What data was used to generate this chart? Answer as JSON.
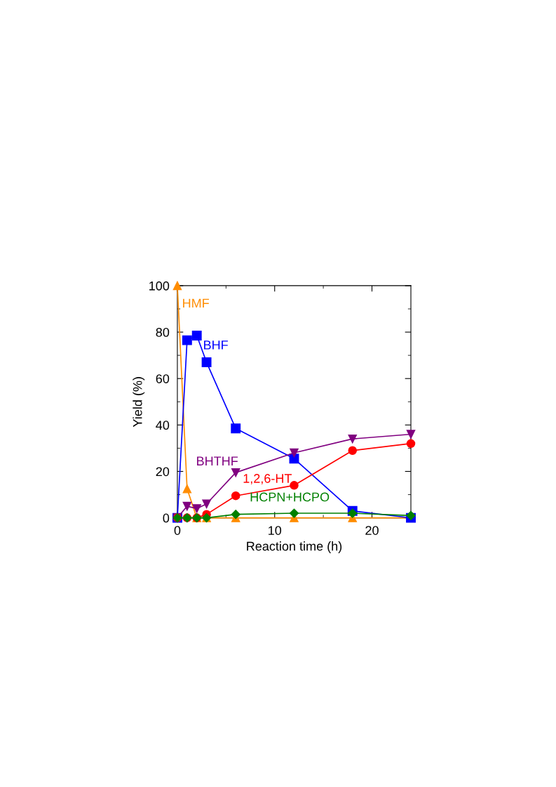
{
  "chart_data": {
    "type": "line",
    "xlabel": "Reaction time (h)",
    "ylabel": "Yield (%)",
    "x": [
      0,
      1,
      2,
      3,
      6,
      12,
      18,
      24
    ],
    "series": [
      {
        "name": "HMF",
        "color": "#ff8c00",
        "marker": "triangle",
        "values": [
          100,
          12.5,
          0,
          0,
          0,
          0,
          0,
          0
        ]
      },
      {
        "name": "BHF",
        "color": "#0000ff",
        "marker": "square",
        "values": [
          0,
          76.5,
          78.5,
          67,
          38.5,
          25.5,
          3,
          0
        ]
      },
      {
        "name": "BHTHF",
        "color": "#800080",
        "marker": "triangle_down",
        "values": [
          0,
          5,
          4,
          6,
          19.5,
          28,
          34,
          36
        ]
      },
      {
        "name": "1,2,6-HT",
        "color": "#ff0000",
        "marker": "circle",
        "values": [
          0,
          0,
          0,
          1.5,
          9.5,
          14,
          29,
          32
        ]
      },
      {
        "name": "HCPN+HCPO",
        "color": "#008000",
        "marker": "diamond",
        "values": [
          0,
          0,
          0,
          0,
          1.5,
          2,
          2,
          1
        ]
      }
    ],
    "xlim": [
      0,
      24
    ],
    "xticks": [
      0,
      10,
      20
    ],
    "ylim": [
      0,
      100
    ],
    "yticks": [
      0,
      20,
      40,
      60,
      80,
      100
    ],
    "grid": false,
    "legend": false,
    "line_style": "solid"
  }
}
